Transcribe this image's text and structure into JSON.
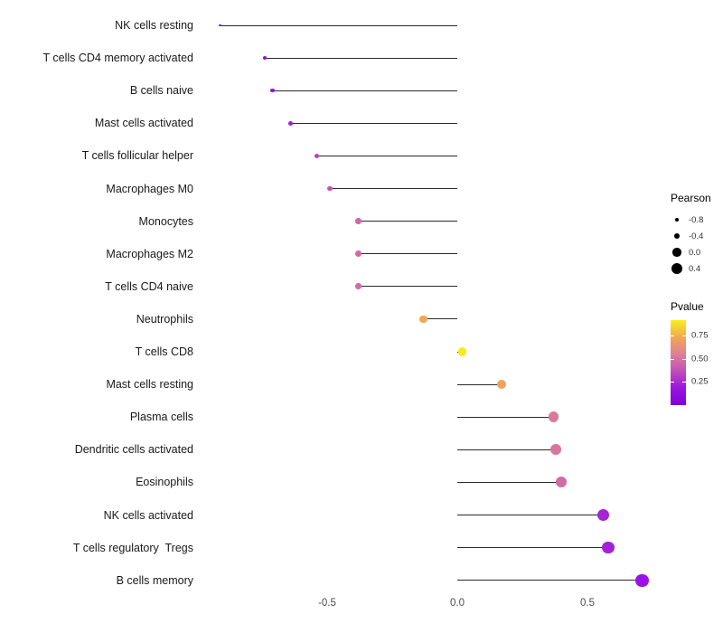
{
  "figure": {
    "background": "#ffffff"
  },
  "chart_data": {
    "type": "scatter",
    "variant": "lollipop",
    "title": "",
    "xlabel": "",
    "ylabel": "",
    "grid": false,
    "legend_position": "right",
    "encoding_note": "horizontal lollipop chart: stem length and x = Pearson correlation, dot size = Pearson, dot color = Pvalue",
    "x_axis": {
      "ticks": [
        -0.5,
        0.0,
        0.5
      ],
      "tick_labels": [
        "-0.5",
        "0.0",
        "0.5"
      ],
      "range": [
        -0.95,
        0.8
      ]
    },
    "points": [
      {
        "label": "NK cells resting",
        "pearson": -0.91,
        "pvalue": 0.02,
        "color": "#7E06DC"
      },
      {
        "label": "T cells CD4 memory activated",
        "pearson": -0.74,
        "pvalue": 0.05,
        "color": "#9110E5"
      },
      {
        "label": "B cells naive",
        "pearson": -0.71,
        "pvalue": 0.06,
        "color": "#9513E2"
      },
      {
        "label": "Mast cells activated",
        "pearson": -0.64,
        "pvalue": 0.09,
        "color": "#A21FD8"
      },
      {
        "label": "T cells follicular helper",
        "pearson": -0.54,
        "pvalue": 0.17,
        "color": "#B83FC4"
      },
      {
        "label": "Macrophages M0",
        "pearson": -0.49,
        "pvalue": 0.24,
        "color": "#C452B6"
      },
      {
        "label": "Monocytes",
        "pearson": -0.38,
        "pvalue": 0.34,
        "color": "#D167A8"
      },
      {
        "label": "Macrophages M2",
        "pearson": -0.38,
        "pvalue": 0.35,
        "color": "#D269A6"
      },
      {
        "label": "T cells CD4 naive",
        "pearson": -0.38,
        "pvalue": 0.35,
        "color": "#D269A6"
      },
      {
        "label": "Neutrophils",
        "pearson": -0.13,
        "pvalue": 0.68,
        "color": "#F0A851"
      },
      {
        "label": "T cells CD8",
        "pearson": 0.02,
        "pvalue": 0.92,
        "color": "#F5EC18"
      },
      {
        "label": "Mast cells resting",
        "pearson": 0.17,
        "pvalue": 0.63,
        "color": "#EFA45B"
      },
      {
        "label": "Plasma cells",
        "pearson": 0.37,
        "pvalue": 0.4,
        "color": "#DA7A9B"
      },
      {
        "label": "Dendritic cells activated",
        "pearson": 0.38,
        "pvalue": 0.38,
        "color": "#D8759E"
      },
      {
        "label": "Eosinophils",
        "pearson": 0.4,
        "pvalue": 0.33,
        "color": "#D369A7"
      },
      {
        "label": "NK cells activated",
        "pearson": 0.56,
        "pvalue": 0.1,
        "color": "#A524D6"
      },
      {
        "label": "T cells regulatory  Tregs",
        "pearson": 0.58,
        "pvalue": 0.09,
        "color": "#A321D8"
      },
      {
        "label": "B cells memory",
        "pearson": 0.71,
        "pvalue": 0.05,
        "color": "#9913E6"
      }
    ],
    "legends": {
      "size": {
        "title": "Pearson",
        "values": [
          -0.8,
          -0.4,
          0.0,
          0.4
        ],
        "labels": [
          "-0.8",
          "-0.4",
          "0.0",
          "0.4"
        ],
        "dot_color": "#000000"
      },
      "color": {
        "title": "Pvalue",
        "tick_values": [
          0.75,
          0.5,
          0.25
        ],
        "tick_labels": [
          "0.75",
          "0.50",
          "0.25"
        ],
        "domain": [
          0,
          0.92
        ],
        "stops_bottom_to_top": [
          "#7A03D9",
          "#9A15E0",
          "#C04FB8",
          "#DD7F97",
          "#F2A94E",
          "#F6EF21"
        ]
      }
    }
  }
}
